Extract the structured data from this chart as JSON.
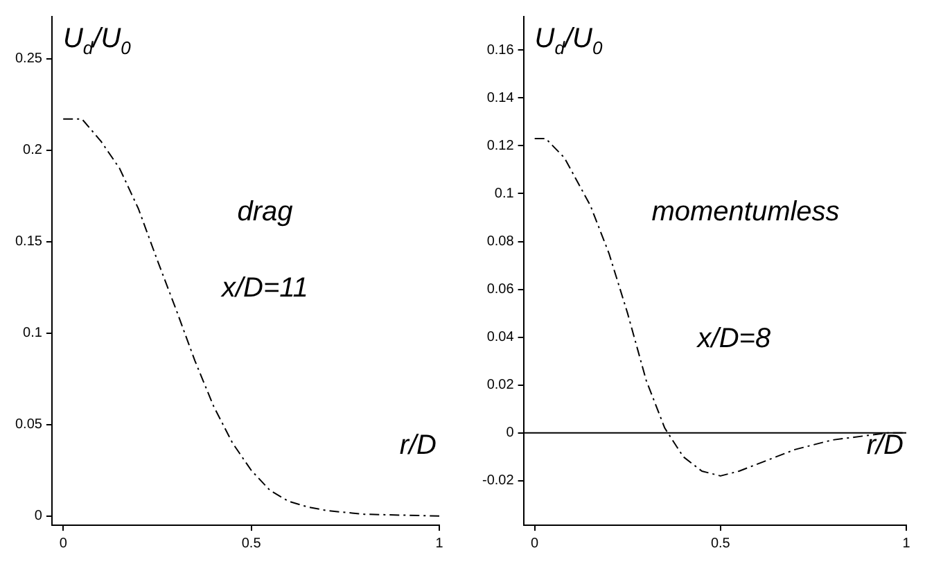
{
  "chart_data": [
    {
      "type": "line",
      "xlabel": "r/D",
      "ylabel": "U$_{d}$/U$_{0}$",
      "annotations": [
        "drag",
        "x/D=11"
      ],
      "line_style": "dashed",
      "marker": "none",
      "grid": false,
      "legend": false,
      "xlim": [
        -0.03,
        1.0
      ],
      "xticks": [
        0,
        0.5,
        1
      ],
      "ylim": [
        -0.005,
        0.273
      ],
      "yticks": [
        0,
        0.05,
        0.1,
        0.15,
        0.2,
        0.25
      ],
      "x": [
        0,
        0.05,
        0.1,
        0.15,
        0.2,
        0.25,
        0.3,
        0.35,
        0.4,
        0.45,
        0.5,
        0.55,
        0.6,
        0.65,
        0.7,
        0.8,
        0.9,
        1.0
      ],
      "series": [
        {
          "color": "#000000",
          "values": [
            0.217,
            0.217,
            0.205,
            0.19,
            0.168,
            0.14,
            0.113,
            0.085,
            0.06,
            0.04,
            0.025,
            0.014,
            0.008,
            0.005,
            0.003,
            0.001,
            0.0005,
            0
          ]
        }
      ]
    },
    {
      "type": "line",
      "xlabel": "r/D",
      "ylabel": "U$_{d}$/U$_{0}$",
      "annotations": [
        "momentumless",
        "x/D=8"
      ],
      "line_style": "dashed",
      "marker": "none",
      "grid": false,
      "legend": false,
      "xlim": [
        -0.03,
        1.0
      ],
      "xticks": [
        0,
        0.5,
        1
      ],
      "ylim": [
        -0.0386,
        0.174
      ],
      "yticks": [
        -0.02,
        0,
        0.02,
        0.04,
        0.06,
        0.08,
        0.1,
        0.12,
        0.14,
        0.16
      ],
      "ref_lines": [
        {
          "axis": "y",
          "value": 0,
          "color": "#000000"
        }
      ],
      "x": [
        0,
        0.03,
        0.08,
        0.15,
        0.2,
        0.25,
        0.3,
        0.35,
        0.4,
        0.45,
        0.5,
        0.55,
        0.6,
        0.7,
        0.8,
        0.9,
        0.95,
        1.0
      ],
      "series": [
        {
          "color": "#000000",
          "values": [
            0.123,
            0.123,
            0.115,
            0.095,
            0.075,
            0.05,
            0.022,
            0.002,
            -0.01,
            -0.016,
            -0.018,
            -0.016,
            -0.013,
            -0.007,
            -0.003,
            -0.001,
            0,
            0
          ]
        }
      ]
    }
  ]
}
